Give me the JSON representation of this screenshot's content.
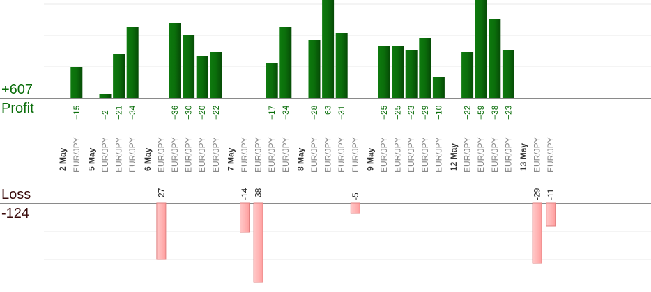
{
  "summary": {
    "profit_total": "+607",
    "profit_label": "Profit",
    "loss_label": "Loss",
    "loss_total": "-124"
  },
  "colors": {
    "profit_bar": "#0b6e0b",
    "profit_text": "#0b6e0b",
    "loss_bar": "#ffb6b6",
    "loss_border": "#e08080",
    "loss_text": "#3a0b0b",
    "axis": "#8a8a8a",
    "grid": "#e8e8e8",
    "pair_text": "#888888",
    "date_text": "#333333"
  },
  "chart_data": {
    "type": "bar",
    "title": "",
    "xlabel": "",
    "ylabel": "",
    "grid": true,
    "groups": [
      {
        "date": "2 May",
        "trades": [
          {
            "pair": "EUR/JPY",
            "value": 15
          }
        ]
      },
      {
        "date": "5 May",
        "trades": [
          {
            "pair": "EUR/JPY",
            "value": 2
          },
          {
            "pair": "EUR/JPY",
            "value": 21
          },
          {
            "pair": "EUR/JPY",
            "value": 34
          }
        ]
      },
      {
        "date": "6 May",
        "trades": [
          {
            "pair": "EUR/JPY",
            "value": -27
          },
          {
            "pair": "EUR/JPY",
            "value": 36
          },
          {
            "pair": "EUR/JPY",
            "value": 30
          },
          {
            "pair": "EUR/JPY",
            "value": 20
          },
          {
            "pair": "EUR/JPY",
            "value": 22
          }
        ]
      },
      {
        "date": "7 May",
        "trades": [
          {
            "pair": "EUR/JPY",
            "value": -14
          },
          {
            "pair": "EUR/JPY",
            "value": -38
          },
          {
            "pair": "EUR/JPY",
            "value": 17
          },
          {
            "pair": "EUR/JPY",
            "value": 34
          }
        ]
      },
      {
        "date": "8 May",
        "trades": [
          {
            "pair": "EUR/JPY",
            "value": 28
          },
          {
            "pair": "EUR/JPY",
            "value": 63
          },
          {
            "pair": "EUR/JPY",
            "value": 31
          },
          {
            "pair": "EUR/JPY",
            "value": -5
          }
        ]
      },
      {
        "date": "9 May",
        "trades": [
          {
            "pair": "EUR/JPY",
            "value": 25
          },
          {
            "pair": "EUR/JPY",
            "value": 25
          },
          {
            "pair": "EUR/JPY",
            "value": 23
          },
          {
            "pair": "EUR/JPY",
            "value": 29
          },
          {
            "pair": "EUR/JPY",
            "value": 10
          }
        ]
      },
      {
        "date": "12 May",
        "trades": [
          {
            "pair": "EUR/JPY",
            "value": 22
          },
          {
            "pair": "EUR/JPY",
            "value": 59
          },
          {
            "pair": "EUR/JPY",
            "value": 38
          },
          {
            "pair": "EUR/JPY",
            "value": 23
          }
        ]
      },
      {
        "date": "13 May",
        "trades": [
          {
            "pair": "EUR/JPY",
            "value": -29
          },
          {
            "pair": "EUR/JPY",
            "value": -11
          }
        ]
      }
    ]
  }
}
